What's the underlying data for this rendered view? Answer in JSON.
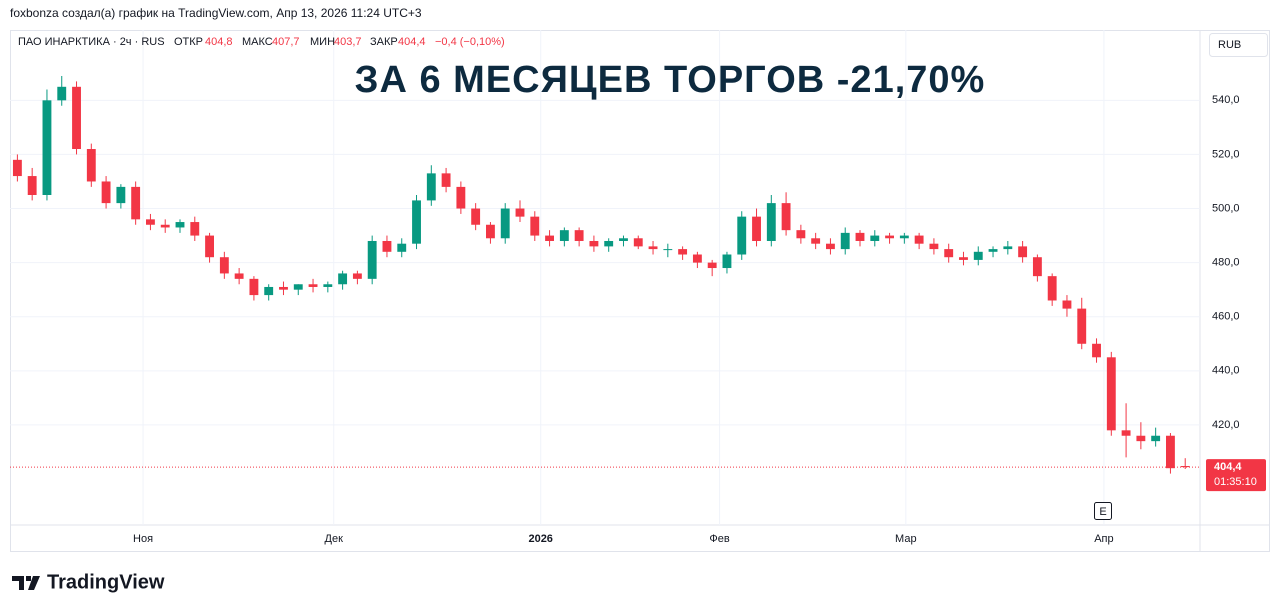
{
  "header": {
    "attribution": "foxbonza создал(а) график на TradingView.com, Апр 13, 2026 11:24 UTC+3",
    "symbol": "ПАО ИНАРКТИКА · 2ч · RUS",
    "open_label": "ОТКР",
    "open": "404,8",
    "high_label": "МАКС",
    "high": "407,7",
    "low_label": "МИН",
    "low": "403,7",
    "close_label": "ЗАКР",
    "close": "404,4",
    "change": "−0,4 (−0,10%)",
    "currency": "RUB"
  },
  "chart_data": {
    "type": "candlestick",
    "title": "ЗА 6 МЕСЯЦЕВ ТОРГОВ -21,70%",
    "open": [
      518,
      512,
      505,
      540,
      545,
      522,
      510,
      502,
      508,
      496,
      494,
      493,
      495,
      490,
      482,
      476,
      474,
      468,
      471,
      470,
      472,
      471,
      472,
      476,
      474,
      488,
      484,
      487,
      503,
      513,
      508,
      500,
      494,
      489,
      500,
      497,
      490,
      488,
      492,
      488,
      486,
      488,
      489,
      486,
      485,
      485,
      483,
      480,
      478,
      483,
      497,
      488,
      502,
      492,
      489,
      487,
      485,
      491,
      488,
      490,
      489,
      490,
      487,
      485,
      482,
      481,
      484,
      485,
      486,
      482,
      475,
      466,
      463,
      450,
      445,
      418,
      416,
      414,
      416,
      404.8
    ],
    "high": [
      520,
      515,
      544,
      549,
      547,
      524,
      512,
      509,
      510,
      498,
      496,
      496,
      497,
      491,
      484,
      478,
      475,
      472,
      473,
      472,
      474,
      473,
      477,
      477,
      490,
      490,
      489,
      505,
      516,
      515,
      510,
      502,
      495,
      502,
      503,
      499,
      492,
      493,
      493,
      490,
      489,
      490,
      490,
      488,
      487,
      486,
      484,
      481,
      484,
      499,
      500,
      505,
      506,
      494,
      491,
      489,
      493,
      492,
      492,
      491,
      491,
      491,
      489,
      487,
      484,
      486,
      486,
      488,
      488,
      483,
      476,
      468,
      467,
      452,
      447,
      428,
      421,
      419,
      417,
      407.7
    ],
    "low": [
      510,
      503,
      503,
      538,
      520,
      508,
      500,
      500,
      494,
      492,
      491,
      491,
      488,
      480,
      474,
      472,
      466,
      466,
      468,
      468,
      469,
      469,
      470,
      472,
      472,
      482,
      482,
      485,
      501,
      506,
      498,
      492,
      487,
      487,
      495,
      488,
      486,
      486,
      486,
      484,
      484,
      486,
      485,
      483,
      482,
      481,
      478,
      475,
      476,
      481,
      486,
      486,
      490,
      487,
      485,
      483,
      483,
      486,
      486,
      487,
      487,
      485,
      483,
      480,
      479,
      479,
      482,
      483,
      480,
      473,
      464,
      460,
      448,
      443,
      416,
      408,
      411,
      412,
      402,
      403.7
    ],
    "close": [
      512,
      505,
      540,
      545,
      522,
      510,
      502,
      508,
      496,
      494,
      493,
      495,
      490,
      482,
      476,
      474,
      468,
      471,
      470,
      472,
      471,
      472,
      476,
      474,
      488,
      484,
      487,
      503,
      513,
      508,
      500,
      494,
      489,
      500,
      497,
      490,
      488,
      492,
      488,
      486,
      488,
      489,
      486,
      485,
      485,
      483,
      480,
      478,
      483,
      497,
      488,
      502,
      492,
      489,
      487,
      485,
      491,
      488,
      490,
      489,
      490,
      487,
      485,
      482,
      481,
      484,
      485,
      486,
      482,
      475,
      466,
      463,
      450,
      445,
      418,
      416,
      414,
      416,
      404,
      404.4
    ],
    "up_color": "#089981",
    "down_color": "#f23645",
    "xlim": [
      -0.5,
      80
    ],
    "xticks": [
      {
        "value": 8.5,
        "label": "Ноя"
      },
      {
        "value": 21.4,
        "label": "Дек"
      },
      {
        "value": 35.4,
        "label": "2026"
      },
      {
        "value": 47.5,
        "label": "Фев"
      },
      {
        "value": 60.1,
        "label": "Мар"
      },
      {
        "value": 73.5,
        "label": "Апр"
      }
    ],
    "ylim": [
      383,
      566
    ],
    "yticks": [
      {
        "value": 420,
        "label": "420,0"
      },
      {
        "value": 440,
        "label": "440,0"
      },
      {
        "value": 460,
        "label": "460,0"
      },
      {
        "value": 480,
        "label": "480,0"
      },
      {
        "value": 500,
        "label": "500,0"
      },
      {
        "value": 520,
        "label": "520,0"
      },
      {
        "value": 540,
        "label": "540,0"
      }
    ],
    "grid": true,
    "last_price_label": "404,4",
    "countdown": "01:35:10",
    "event_marker": "E"
  },
  "footer": {
    "logo": "TradingView"
  }
}
